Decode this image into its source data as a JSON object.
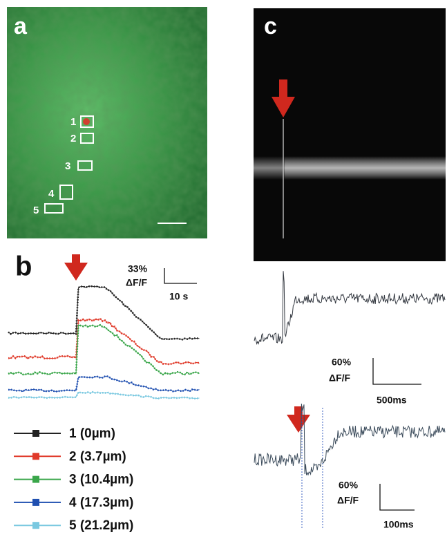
{
  "panels": {
    "a": {
      "label": "a",
      "rois": [
        "1",
        "2",
        "3",
        "4",
        "5"
      ]
    },
    "b": {
      "label": "b",
      "scale": {
        "y": "33%",
        "unit": "ΔF/F",
        "x": "10 s"
      },
      "legend": [
        {
          "name": "1 (0µm)",
          "color": "#222222"
        },
        {
          "name": "2 (3.7µm)",
          "color": "#e03a2a"
        },
        {
          "name": "3 (10.4µm)",
          "color": "#3aa64a"
        },
        {
          "name": "4 (17.3µm)",
          "color": "#1f4fb0"
        },
        {
          "name": "5 (21.2µm)",
          "color": "#79c8e0"
        }
      ]
    },
    "c": {
      "label": "c",
      "scale_top": {
        "y": "60%",
        "unit": "ΔF/F",
        "x": "500ms"
      },
      "scale_bottom": {
        "y": "60%",
        "unit": "ΔF/F",
        "x": "100ms"
      }
    }
  }
}
